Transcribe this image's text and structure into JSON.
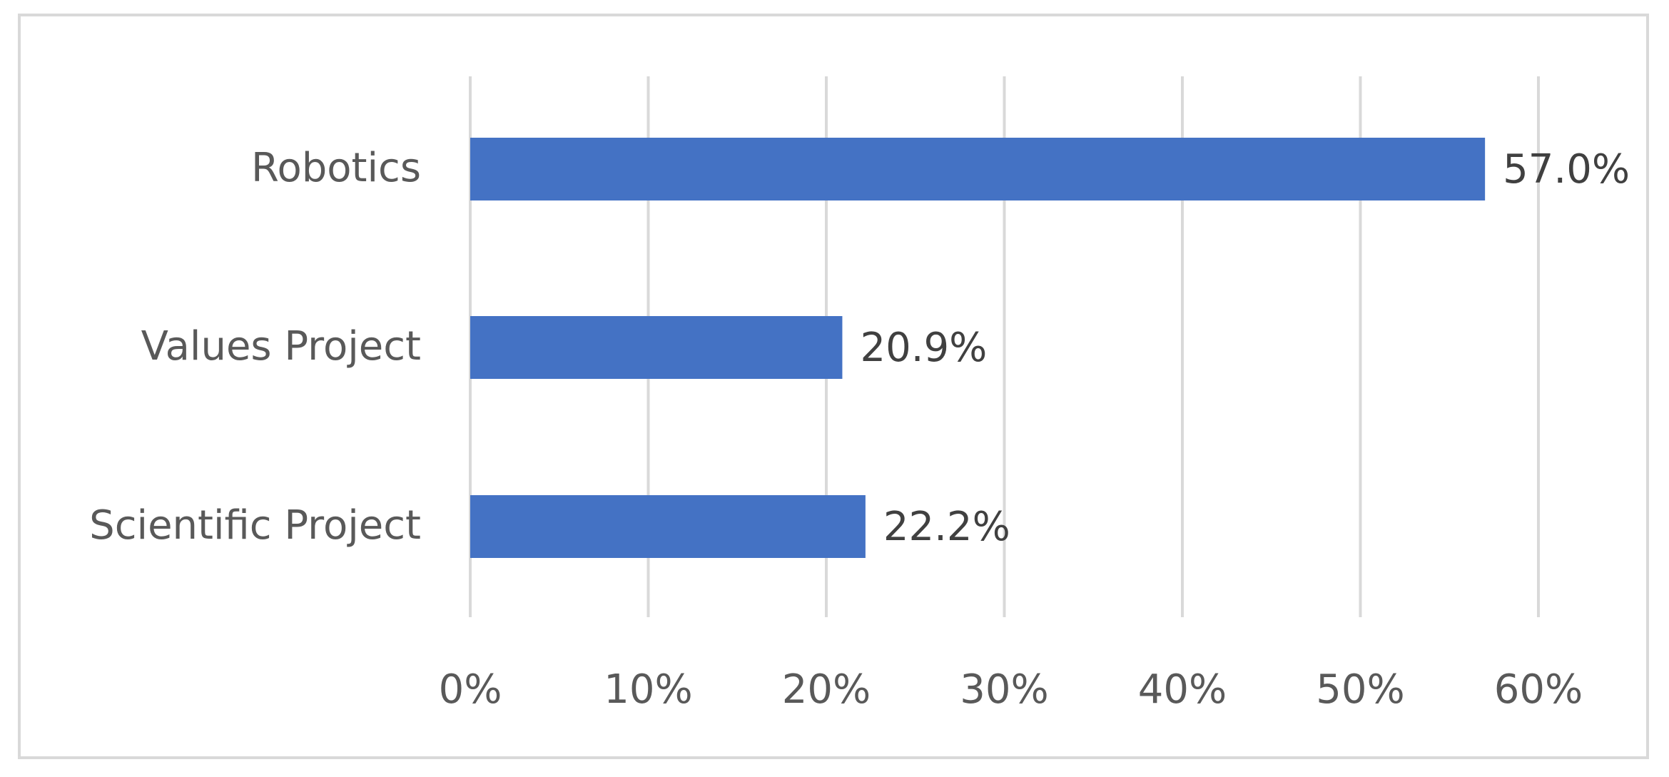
{
  "chart_data": {
    "type": "hbar",
    "categories": [
      "Robotics",
      "Values Project",
      "Scientific Project"
    ],
    "values": [
      57.0,
      20.9,
      22.2
    ],
    "value_labels": [
      "57.0%",
      "20.9%",
      "22.2%"
    ],
    "color": "#4472c4",
    "xlim": [
      0,
      60
    ],
    "xticks": [
      {
        "value": 0,
        "label": "0%"
      },
      {
        "value": 10,
        "label": "10%"
      },
      {
        "value": 20,
        "label": "20%"
      },
      {
        "value": 30,
        "label": "30%"
      },
      {
        "value": 40,
        "label": "40%"
      },
      {
        "value": 50,
        "label": "50%"
      },
      {
        "value": 60,
        "label": "60%"
      }
    ],
    "grid": true
  }
}
